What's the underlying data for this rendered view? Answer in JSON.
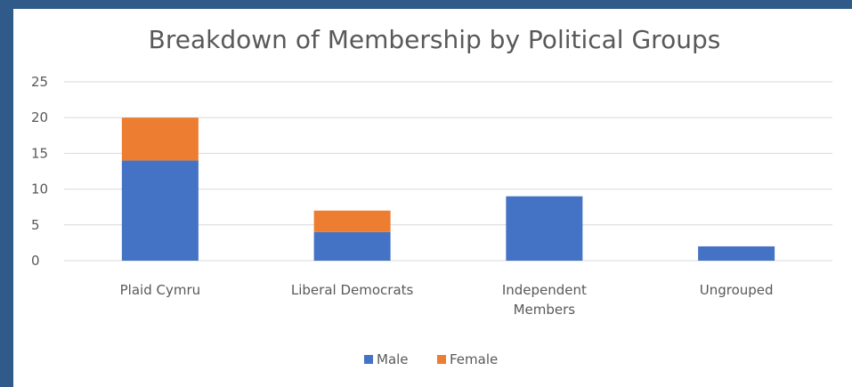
{
  "colors": {
    "male": "#4472c4",
    "female": "#ed7d31",
    "grid": "#d9d9d9",
    "text": "#595959"
  },
  "chart_data": {
    "type": "bar",
    "stacked": true,
    "title": "Breakdown of Membership by Political Groups",
    "categories": [
      [
        "Plaid Cymru"
      ],
      [
        "Liberal Democrats"
      ],
      [
        "Independent",
        "Members"
      ],
      [
        "Ungrouped"
      ]
    ],
    "series": [
      {
        "name": "Male",
        "values": [
          14,
          4,
          9,
          2
        ]
      },
      {
        "name": "Female",
        "values": [
          6,
          3,
          0,
          0
        ]
      }
    ],
    "ylim": [
      0,
      25
    ],
    "yticks": [
      0,
      5,
      10,
      15,
      20,
      25
    ],
    "grid": true,
    "legend": "bottom"
  }
}
